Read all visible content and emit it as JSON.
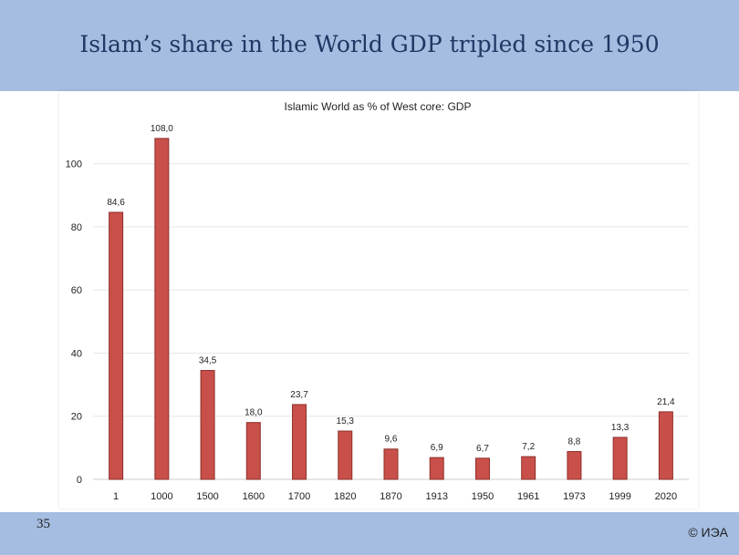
{
  "slide": {
    "title": "Islam’s share in the World GDP tripled since 1950",
    "number": "35",
    "copyright": "© ИЭА"
  },
  "colors": {
    "header": "#a4bde0",
    "bar": "#c9504a",
    "bar_stroke": "#8e2f2a",
    "grid": "#e6e6e6"
  },
  "chart_data": {
    "type": "bar",
    "title": "Islamic World as % of West core: GDP",
    "xlabel": "",
    "ylabel": "",
    "categories": [
      "1",
      "1000",
      "1500",
      "1600",
      "1700",
      "1820",
      "1870",
      "1913",
      "1950",
      "1961",
      "1973",
      "1999",
      "2020"
    ],
    "values": [
      84.6,
      108.0,
      34.5,
      18.0,
      23.7,
      15.3,
      9.6,
      6.9,
      6.7,
      7.2,
      8.8,
      13.3,
      21.4
    ],
    "value_labels": [
      "84,6",
      "108,0",
      "34,5",
      "18,0",
      "23,7",
      "15,3",
      "9,6",
      "6,9",
      "6,7",
      "7,2",
      "8,8",
      "13,3",
      "21,4"
    ],
    "ylim": [
      0,
      110
    ],
    "yticks": [
      "0",
      "20",
      "40",
      "60",
      "80",
      "100"
    ],
    "grid": true,
    "legend": "none"
  }
}
